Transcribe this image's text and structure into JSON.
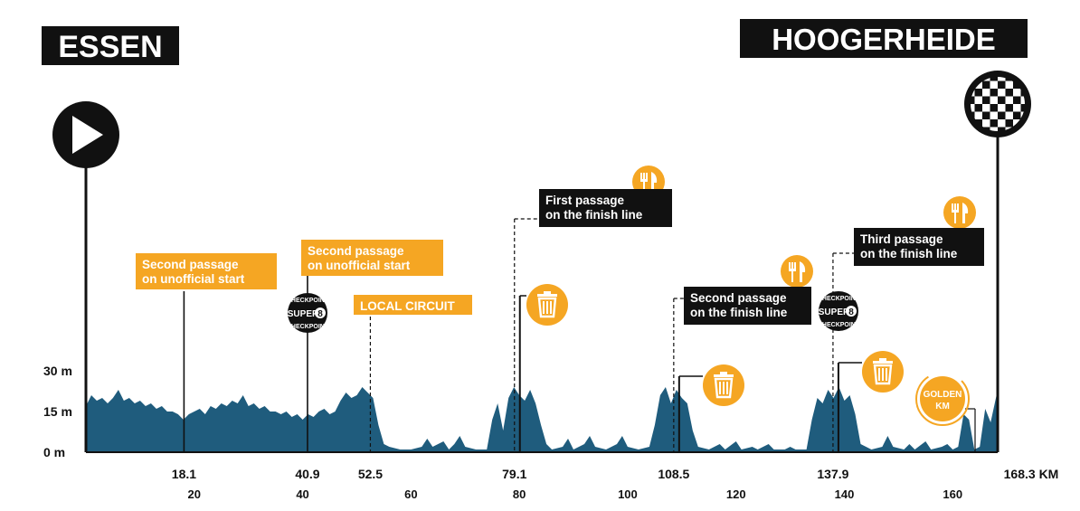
{
  "chart_data": {
    "type": "area",
    "start_city": "ESSEN",
    "finish_city": "HOOGERHEIDE",
    "y_unit": "m",
    "y_ticks": [
      "0 m",
      "15 m",
      "30 m"
    ],
    "ylim": [
      0,
      35
    ],
    "xlim": [
      0,
      168.3
    ],
    "x_ticks_secondary": [
      20,
      40,
      60,
      80,
      100,
      120,
      140,
      160
    ],
    "distance_total_label": "168.3 KM",
    "profile_color": "#1f5c7d",
    "accent_color": "#f5a623",
    "dark_color": "#111111",
    "markers": [
      {
        "km": 18.1,
        "km_label": "18.1",
        "label": [
          "Second passage",
          "on unofficial start"
        ],
        "style": "orange"
      },
      {
        "km": 40.9,
        "km_label": "40.9",
        "label": [
          "Second passage",
          "on unofficial start"
        ],
        "style": "orange",
        "badge": "super8"
      },
      {
        "km": 52.5,
        "km_label": "52.5",
        "label": [
          "LOCAL CIRCUIT"
        ],
        "style": "orange"
      },
      {
        "km": 79.1,
        "km_label": "79.1",
        "label": [
          "First passage",
          "on the finish line"
        ],
        "style": "dark",
        "feed": true,
        "waste": true
      },
      {
        "km": 108.5,
        "km_label": "108.5",
        "label": [
          "Second passage",
          "on the finish line"
        ],
        "style": "dark",
        "feed": true,
        "waste": true
      },
      {
        "km": 137.9,
        "km_label": "137.9",
        "label": [
          "Third passage",
          "on the finish line"
        ],
        "style": "dark",
        "feed": true,
        "waste": true,
        "badge": "super8"
      }
    ],
    "badges": {
      "super8_text": "SUPER",
      "super8_number": "8",
      "super8_ring": "CHECKPOINT",
      "golden_km": [
        "GOLDEN",
        "KM"
      ]
    },
    "elevation": [
      [
        0,
        17
      ],
      [
        1,
        21
      ],
      [
        2,
        19
      ],
      [
        3,
        20
      ],
      [
        4,
        18
      ],
      [
        5,
        20
      ],
      [
        6,
        23
      ],
      [
        7,
        19
      ],
      [
        8,
        20
      ],
      [
        9,
        18
      ],
      [
        10,
        19
      ],
      [
        11,
        17
      ],
      [
        12,
        18
      ],
      [
        13,
        16
      ],
      [
        14,
        17
      ],
      [
        15,
        15
      ],
      [
        16,
        15
      ],
      [
        17,
        14
      ],
      [
        18,
        12
      ],
      [
        19,
        14
      ],
      [
        20,
        15
      ],
      [
        21,
        16
      ],
      [
        22,
        14
      ],
      [
        23,
        17
      ],
      [
        24,
        16
      ],
      [
        25,
        18
      ],
      [
        26,
        17
      ],
      [
        27,
        19
      ],
      [
        28,
        18
      ],
      [
        29,
        21
      ],
      [
        30,
        17
      ],
      [
        31,
        18
      ],
      [
        32,
        16
      ],
      [
        33,
        17
      ],
      [
        34,
        15
      ],
      [
        35,
        15
      ],
      [
        36,
        14
      ],
      [
        37,
        15
      ],
      [
        38,
        13
      ],
      [
        39,
        14
      ],
      [
        40,
        12
      ],
      [
        41,
        14
      ],
      [
        42,
        13
      ],
      [
        43,
        15
      ],
      [
        44,
        16
      ],
      [
        45,
        14
      ],
      [
        46,
        15
      ],
      [
        47,
        19
      ],
      [
        48,
        22
      ],
      [
        49,
        20
      ],
      [
        50,
        21
      ],
      [
        51,
        24
      ],
      [
        52,
        22
      ],
      [
        53,
        20
      ],
      [
        54,
        10
      ],
      [
        55,
        3
      ],
      [
        56,
        2
      ],
      [
        58,
        1
      ],
      [
        60,
        1
      ],
      [
        62,
        2
      ],
      [
        63,
        5
      ],
      [
        64,
        2
      ],
      [
        66,
        4
      ],
      [
        67,
        1
      ],
      [
        68,
        3
      ],
      [
        69,
        6
      ],
      [
        70,
        2
      ],
      [
        72,
        1
      ],
      [
        74,
        1
      ],
      [
        75,
        12
      ],
      [
        76,
        18
      ],
      [
        77,
        8
      ],
      [
        78,
        20
      ],
      [
        79,
        24
      ],
      [
        80,
        21
      ],
      [
        81,
        19
      ],
      [
        82,
        23
      ],
      [
        83,
        18
      ],
      [
        84,
        10
      ],
      [
        85,
        3
      ],
      [
        86,
        1
      ],
      [
        88,
        2
      ],
      [
        89,
        5
      ],
      [
        90,
        1
      ],
      [
        92,
        3
      ],
      [
        93,
        6
      ],
      [
        94,
        2
      ],
      [
        96,
        1
      ],
      [
        98,
        3
      ],
      [
        99,
        6
      ],
      [
        100,
        2
      ],
      [
        102,
        1
      ],
      [
        104,
        2
      ],
      [
        105,
        10
      ],
      [
        106,
        21
      ],
      [
        107,
        24
      ],
      [
        108,
        18
      ],
      [
        109,
        23
      ],
      [
        110,
        20
      ],
      [
        111,
        18
      ],
      [
        112,
        8
      ],
      [
        113,
        2
      ],
      [
        115,
        1
      ],
      [
        117,
        3
      ],
      [
        118,
        1
      ],
      [
        120,
        4
      ],
      [
        121,
        1
      ],
      [
        123,
        2
      ],
      [
        124,
        1
      ],
      [
        126,
        3
      ],
      [
        127,
        1
      ],
      [
        129,
        1
      ],
      [
        130,
        2
      ],
      [
        131,
        1
      ],
      [
        133,
        1
      ],
      [
        134,
        12
      ],
      [
        135,
        20
      ],
      [
        136,
        18
      ],
      [
        137,
        23
      ],
      [
        138,
        20
      ],
      [
        139,
        24
      ],
      [
        140,
        19
      ],
      [
        141,
        21
      ],
      [
        142,
        14
      ],
      [
        143,
        3
      ],
      [
        145,
        1
      ],
      [
        147,
        2
      ],
      [
        148,
        6
      ],
      [
        149,
        2
      ],
      [
        151,
        1
      ],
      [
        152,
        3
      ],
      [
        153,
        1
      ],
      [
        155,
        4
      ],
      [
        156,
        1
      ],
      [
        158,
        2
      ],
      [
        159,
        3
      ],
      [
        160,
        1
      ],
      [
        161,
        2
      ],
      [
        162,
        14
      ],
      [
        163,
        12
      ],
      [
        164,
        1
      ],
      [
        165,
        2
      ],
      [
        166,
        16
      ],
      [
        167,
        11
      ],
      [
        168.3,
        23
      ]
    ]
  }
}
